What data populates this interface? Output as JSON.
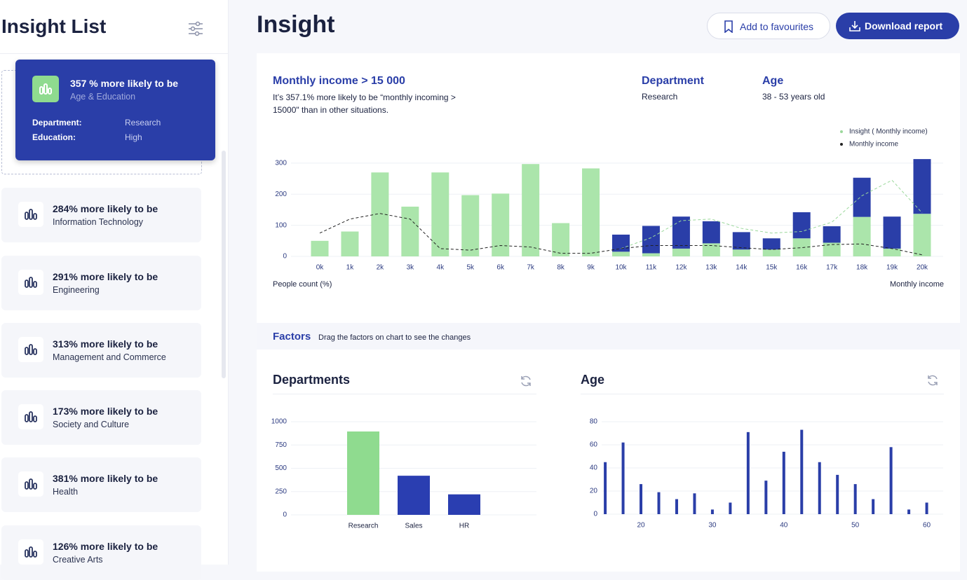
{
  "sidebar": {
    "title": "Insight List",
    "selected": {
      "title": "357 % more likely to be",
      "subtitle": "Age & Education",
      "fields": [
        {
          "label": "Department:",
          "value": "Research"
        },
        {
          "label": "Education:",
          "value": "High"
        }
      ]
    },
    "items": [
      {
        "title": "284% more likely to be",
        "subtitle": "Information Technology"
      },
      {
        "title": "291% more likely to be",
        "subtitle": "Engineering"
      },
      {
        "title": "313% more likely to be",
        "subtitle": "Management and Commerce"
      },
      {
        "title": "173% more likely to be",
        "subtitle": "Society and Culture"
      },
      {
        "title": "381% more likely to be",
        "subtitle": "Health"
      },
      {
        "title": "126% more likely to be",
        "subtitle": "Creative Arts"
      }
    ]
  },
  "header": {
    "title": "Insight",
    "buttons": [
      "Add to favourites",
      "Download report"
    ]
  },
  "insight": {
    "title": "Monthly income > 15 000",
    "description": "It’s 357.1% more likely to be “monthly incoming > 15000\" than in other situations.",
    "details": [
      {
        "label": "Department",
        "value": "Research"
      },
      {
        "label": "Age",
        "value": "38 - 53 years old"
      }
    ]
  },
  "factors": {
    "title": "Factors",
    "hint": "Drag the factors on chart to see the changes"
  },
  "chart_data": [
    {
      "type": "bar",
      "stacked": true,
      "y_label": "People count (%)",
      "x_label": "Monthly income",
      "categories": [
        "0k",
        "1k",
        "2k",
        "3k",
        "4k",
        "5k",
        "6k",
        "7k",
        "8k",
        "9k",
        "10k",
        "11k",
        "12k",
        "13k",
        "14k",
        "15k",
        "16k",
        "17k",
        "18k",
        "19k",
        "20k"
      ],
      "series": [
        {
          "type": "bar",
          "color": "#abe5ab",
          "values": [
            50,
            80,
            270,
            160,
            270,
            197,
            202,
            297,
            107,
            283,
            15,
            10,
            25,
            42,
            22,
            22,
            58,
            44,
            127,
            25,
            137
          ]
        },
        {
          "type": "bar",
          "color": "#2a3ea8",
          "values": [
            null,
            null,
            null,
            null,
            null,
            null,
            null,
            null,
            null,
            null,
            55,
            88,
            103,
            71,
            56,
            36,
            84,
            53,
            126,
            103,
            176
          ]
        },
        {
          "type": "line",
          "name": "Insight ( Monthly income)",
          "color": "#9bd89b",
          "values": [
            null,
            null,
            null,
            null,
            null,
            null,
            null,
            null,
            null,
            null,
            25,
            60,
            115,
            120,
            90,
            75,
            80,
            110,
            195,
            245,
            140
          ]
        },
        {
          "type": "line",
          "name": "Monthly income",
          "color": "#222222",
          "values": [
            75,
            120,
            138,
            120,
            25,
            20,
            35,
            30,
            10,
            10,
            25,
            35,
            35,
            35,
            28,
            22,
            28,
            38,
            40,
            25,
            5
          ]
        }
      ],
      "ylim": [
        0,
        320
      ],
      "yticks": [
        0,
        100,
        200,
        300
      ],
      "grid": true,
      "legend": "top-right"
    },
    {
      "type": "bar",
      "title": "Departments",
      "categories": [
        "Research",
        "Sales",
        "HR"
      ],
      "values": [
        895,
        420,
        220
      ],
      "colors": [
        "#8fdb8f",
        "#2a3eb1",
        "#2a3eb1"
      ],
      "ylim": [
        0,
        1000
      ],
      "yticks": [
        0,
        250,
        500,
        750,
        1000
      ],
      "grid": true
    },
    {
      "type": "bar",
      "title": "Age",
      "x": [
        15,
        17.5,
        20,
        22.5,
        25,
        27.5,
        30,
        32.5,
        35,
        37.5,
        40,
        42.5,
        45,
        47.5,
        50,
        52.5,
        55,
        57.5,
        60
      ],
      "values": [
        45,
        62,
        26,
        19,
        13,
        18,
        4,
        10,
        71,
        29,
        54,
        73,
        45,
        34,
        26,
        13,
        58,
        4,
        10
      ],
      "color": "#2a3ea8",
      "xlim": [
        14.5,
        62.3
      ],
      "xticks": [
        20,
        30,
        40,
        50,
        60
      ],
      "ylim": [
        0,
        80
      ],
      "yticks": [
        0,
        20,
        40,
        60,
        80
      ],
      "grid": true
    }
  ]
}
